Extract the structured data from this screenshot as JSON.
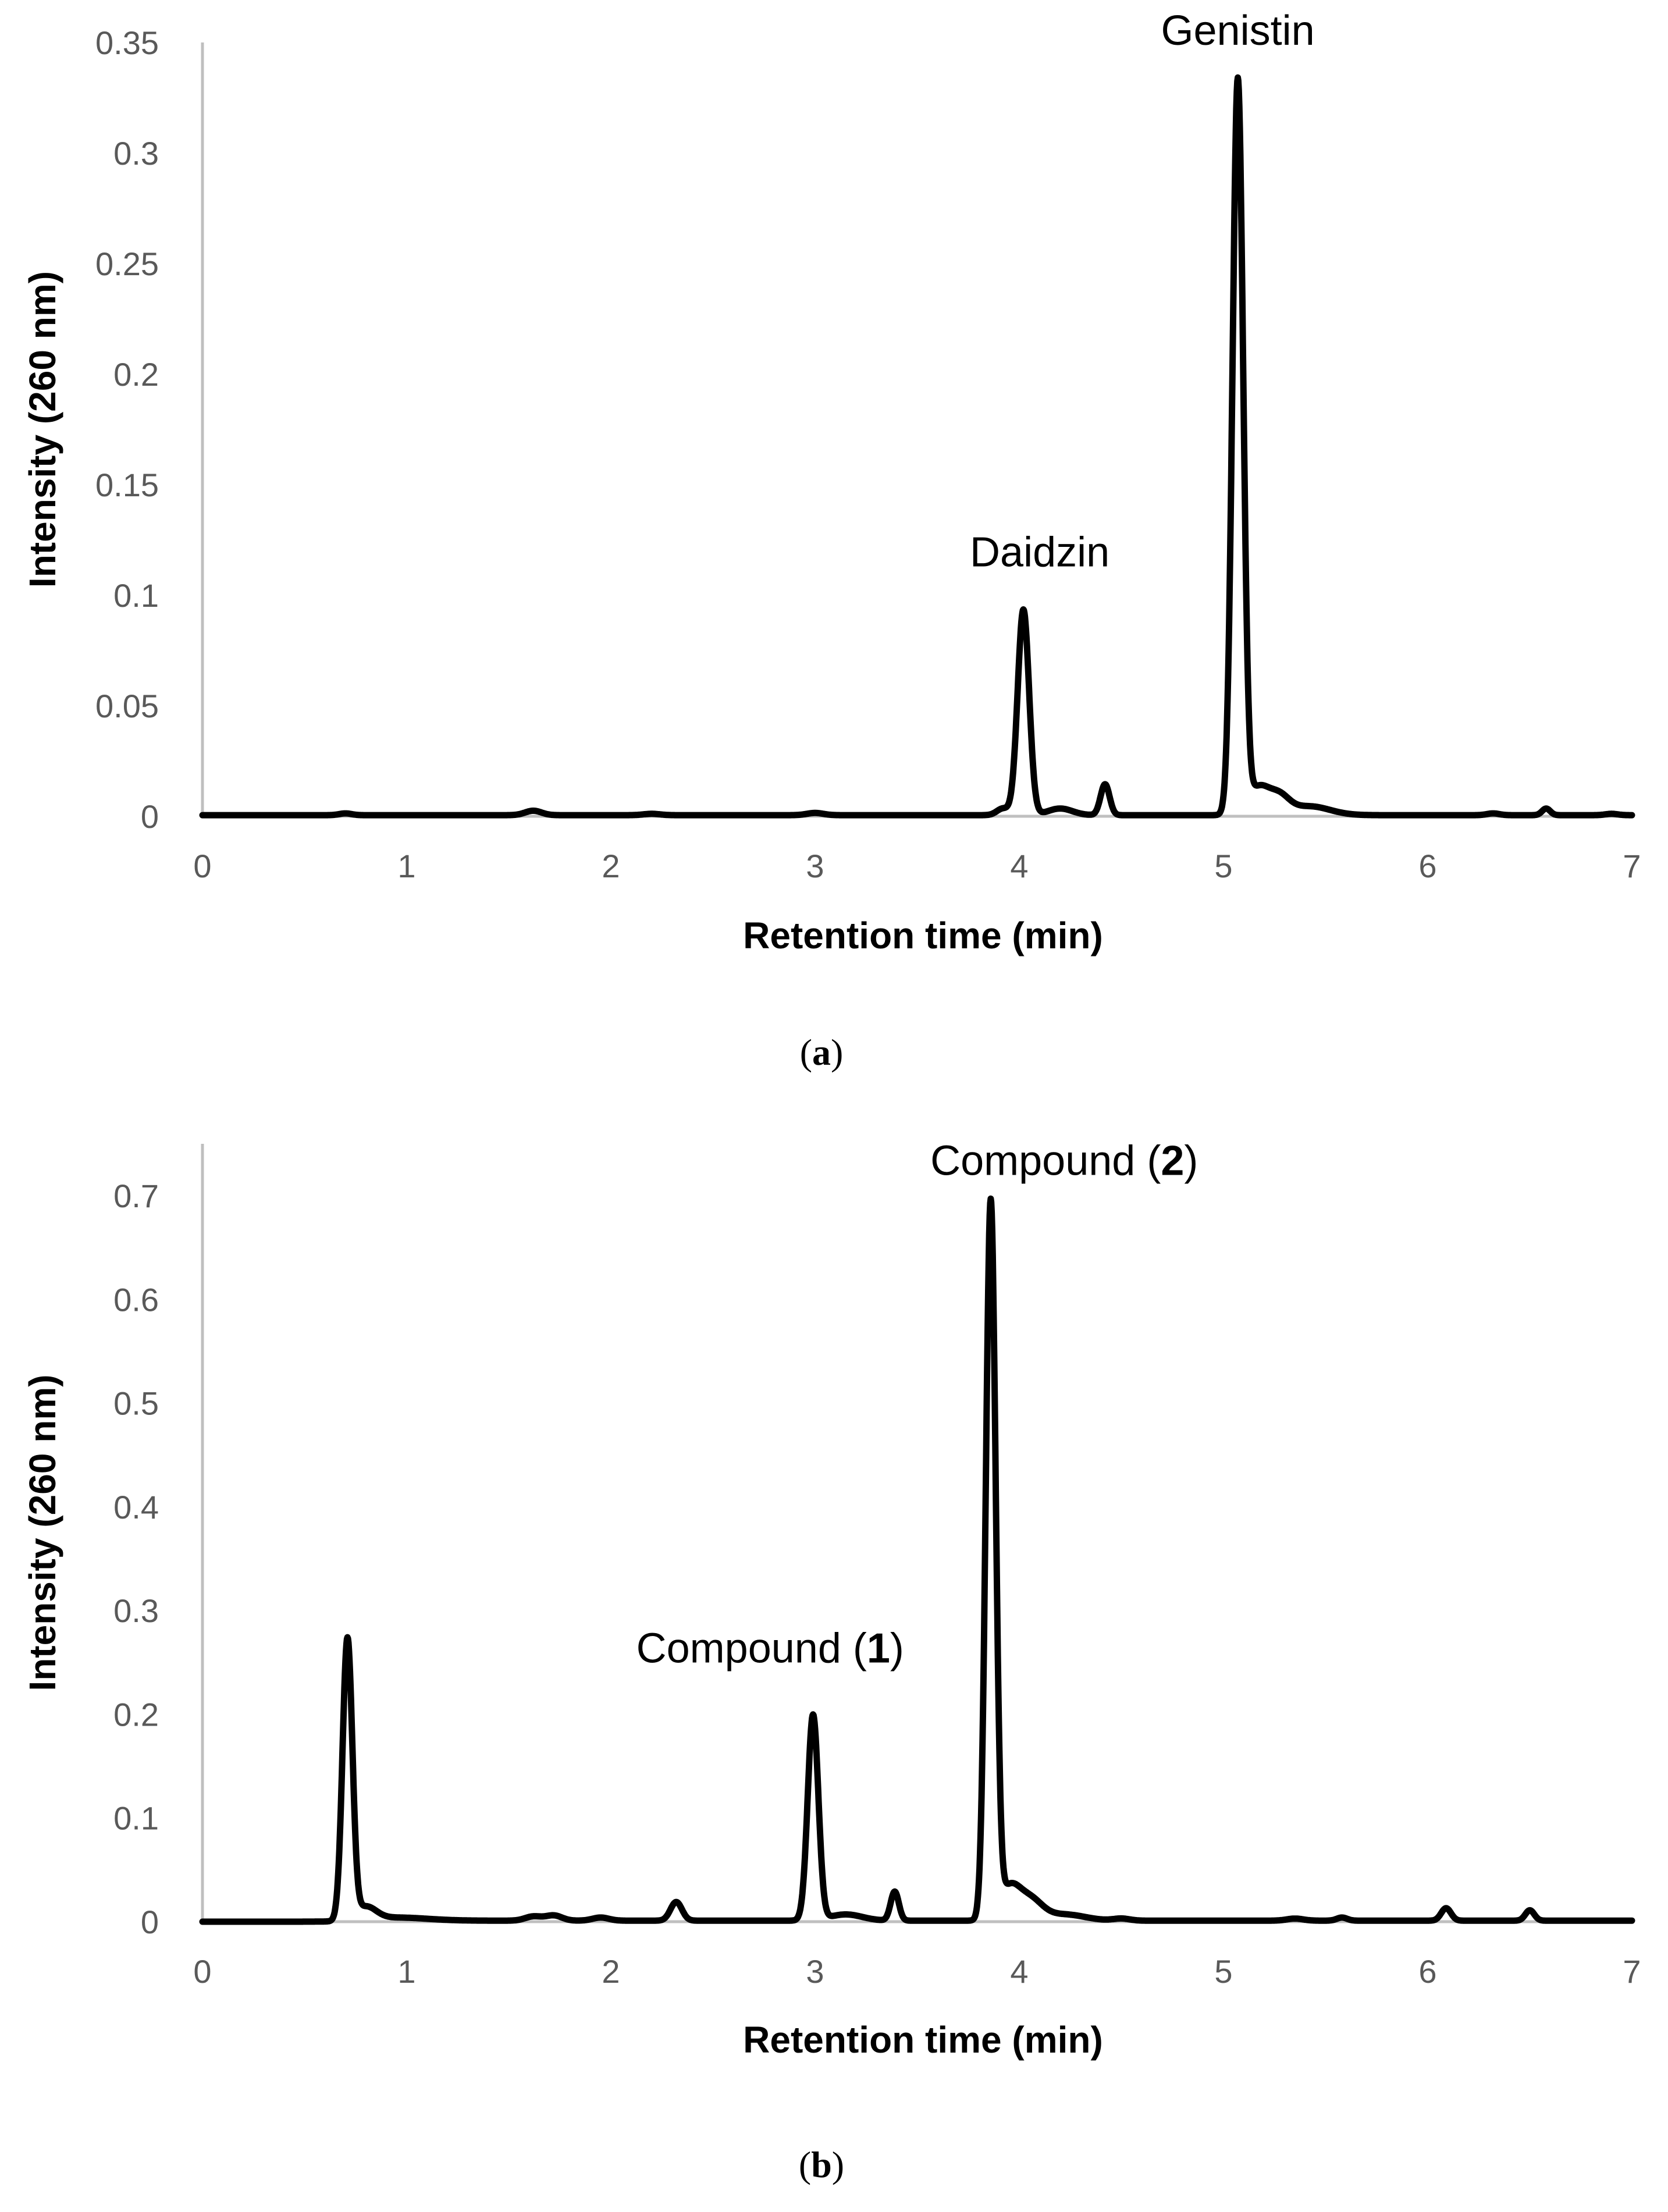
{
  "chart_data": [
    {
      "type": "line",
      "panel": "a",
      "caption": {
        "open": "(",
        "letter": "a",
        "close": ")"
      },
      "xlabel": "Retention time (min)",
      "ylabel": "Intensity (260 nm)",
      "xlim": [
        0,
        7
      ],
      "ylim": [
        0,
        0.35
      ],
      "xticks": [
        "0",
        "1",
        "2",
        "3",
        "4",
        "5",
        "6",
        "7"
      ],
      "yticks": [
        "0",
        "0.05",
        "0.1",
        "0.15",
        "0.2",
        "0.25",
        "0.3",
        "0.35"
      ],
      "ytick_values": [
        0,
        0.05,
        0.1,
        0.15,
        0.2,
        0.25,
        0.3,
        0.35
      ],
      "grid": false,
      "baseline": 0.0005,
      "peaks": [
        {
          "t": 0.7,
          "h": 0.0008,
          "w": 0.03
        },
        {
          "t": 1.62,
          "h": 0.002,
          "w": 0.04
        },
        {
          "t": 2.2,
          "h": 0.0006,
          "w": 0.04
        },
        {
          "t": 3.0,
          "h": 0.001,
          "w": 0.04
        },
        {
          "t": 3.92,
          "h": 0.003,
          "w": 0.03
        },
        {
          "t": 4.02,
          "h": 0.093,
          "w": 0.028
        },
        {
          "t": 4.2,
          "h": 0.003,
          "w": 0.06
        },
        {
          "t": 4.42,
          "h": 0.014,
          "w": 0.022
        },
        {
          "t": 5.07,
          "h": 0.332,
          "w": 0.026
        },
        {
          "t": 5.17,
          "h": 0.012,
          "w": 0.05
        },
        {
          "t": 5.27,
          "h": 0.008,
          "w": 0.05
        },
        {
          "t": 5.42,
          "h": 0.004,
          "w": 0.1
        },
        {
          "t": 6.32,
          "h": 0.0008,
          "w": 0.03
        },
        {
          "t": 6.58,
          "h": 0.003,
          "w": 0.02
        },
        {
          "t": 6.9,
          "h": 0.0006,
          "w": 0.03
        }
      ],
      "annotations": [
        {
          "text": "Daidzin",
          "x": 4.1,
          "y": 0.113
        },
        {
          "text": "Genistin",
          "x": 5.07,
          "y": 0.349
        }
      ]
    },
    {
      "type": "line",
      "panel": "b",
      "caption": {
        "open": "(",
        "letter": "b",
        "close": ")"
      },
      "xlabel": "Retention time (min)",
      "ylabel": "Intensity (260 nm)",
      "xlim": [
        0,
        7
      ],
      "ylim": [
        0,
        0.75
      ],
      "xticks": [
        "0",
        "1",
        "2",
        "3",
        "4",
        "5",
        "6",
        "7"
      ],
      "yticks": [
        "0",
        "0.1",
        "0.2",
        "0.3",
        "0.4",
        "0.5",
        "0.6",
        "0.7"
      ],
      "ytick_values": [
        0,
        0.1,
        0.2,
        0.3,
        0.4,
        0.5,
        0.6,
        0.7
      ],
      "grid": false,
      "baseline": 0.001,
      "peaks": [
        {
          "t": 0.71,
          "h": 0.27,
          "w": 0.024
        },
        {
          "t": 0.8,
          "h": 0.012,
          "w": 0.05
        },
        {
          "t": 0.95,
          "h": 0.003,
          "w": 0.15
        },
        {
          "t": 1.62,
          "h": 0.004,
          "w": 0.04
        },
        {
          "t": 1.72,
          "h": 0.005,
          "w": 0.04
        },
        {
          "t": 1.95,
          "h": 0.003,
          "w": 0.04
        },
        {
          "t": 2.32,
          "h": 0.018,
          "w": 0.028
        },
        {
          "t": 2.99,
          "h": 0.198,
          "w": 0.026
        },
        {
          "t": 3.15,
          "h": 0.006,
          "w": 0.08
        },
        {
          "t": 3.39,
          "h": 0.028,
          "w": 0.02
        },
        {
          "t": 3.86,
          "h": 0.69,
          "w": 0.024
        },
        {
          "t": 3.95,
          "h": 0.03,
          "w": 0.05
        },
        {
          "t": 4.05,
          "h": 0.02,
          "w": 0.06
        },
        {
          "t": 4.22,
          "h": 0.006,
          "w": 0.1
        },
        {
          "t": 4.5,
          "h": 0.002,
          "w": 0.04
        },
        {
          "t": 5.35,
          "h": 0.002,
          "w": 0.04
        },
        {
          "t": 5.58,
          "h": 0.003,
          "w": 0.025
        },
        {
          "t": 6.09,
          "h": 0.012,
          "w": 0.024
        },
        {
          "t": 6.5,
          "h": 0.01,
          "w": 0.022
        }
      ],
      "annotations": [
        {
          "text": "Compound (",
          "bold": "1",
          "close": ")",
          "x": 2.78,
          "y": 0.25
        },
        {
          "text": "Compound (",
          "bold": "2",
          "close": ")",
          "x": 4.22,
          "y": 0.72
        }
      ]
    }
  ]
}
